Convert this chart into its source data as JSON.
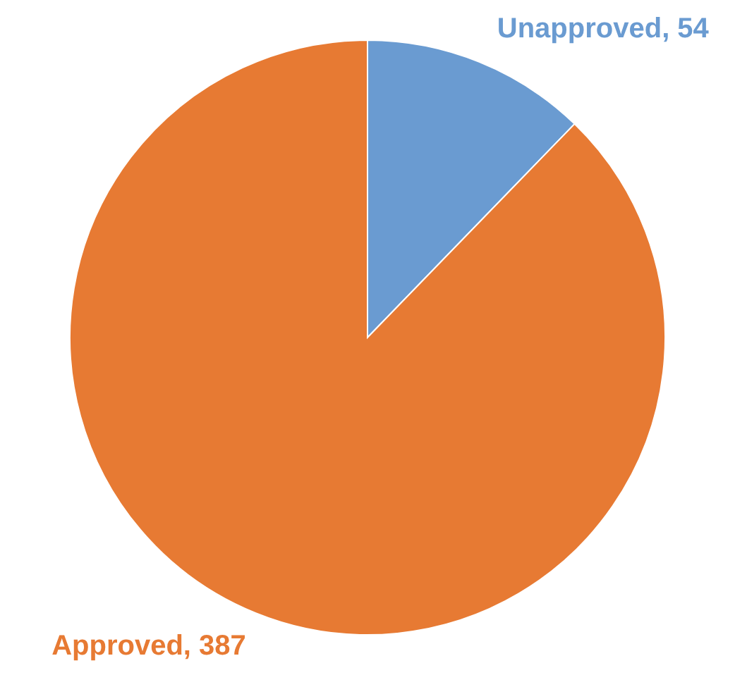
{
  "chart_data": {
    "type": "pie",
    "categories": [
      "Unapproved",
      "Approved"
    ],
    "values": [
      54,
      387
    ],
    "colors": [
      "#6a9bd1",
      "#e77a33"
    ],
    "value_labels": [
      ", 54",
      ", 387"
    ]
  }
}
